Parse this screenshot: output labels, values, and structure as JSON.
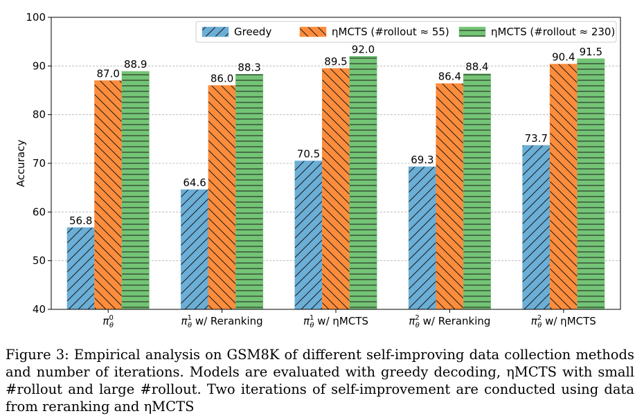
{
  "chart_data": {
    "type": "bar",
    "categories": [
      "π_θ^0",
      "π_θ^1 w/ Reranking",
      "π_θ^1 w/ ηMCTS",
      "π_θ^2 w/ Reranking",
      "π_θ^2 w/ ηMCTS"
    ],
    "category_labels": [
      {
        "base": "π",
        "sub": "θ",
        "sup": "0",
        "suffix": ""
      },
      {
        "base": "π",
        "sub": "θ",
        "sup": "1",
        "suffix": " w/ Reranking"
      },
      {
        "base": "π",
        "sub": "θ",
        "sup": "1",
        "suffix": " w/ ηMCTS"
      },
      {
        "base": "π",
        "sub": "θ",
        "sup": "2",
        "suffix": " w/ Reranking"
      },
      {
        "base": "π",
        "sub": "θ",
        "sup": "2",
        "suffix": " w/ ηMCTS"
      }
    ],
    "series": [
      {
        "name": "Greedy",
        "values": [
          56.8,
          64.6,
          70.5,
          69.3,
          73.7
        ],
        "color": "#6baed6",
        "hatch": "diagonal-up"
      },
      {
        "name": "ηMCTS (#rollout ≈ 55)",
        "values": [
          87.0,
          86.0,
          89.5,
          86.4,
          90.4
        ],
        "color": "#fd8d3c",
        "hatch": "diagonal-down"
      },
      {
        "name": "ηMCTS (#rollout ≈ 230)",
        "values": [
          88.9,
          88.3,
          92.0,
          88.4,
          91.5
        ],
        "color": "#74c476",
        "hatch": "horizontal"
      }
    ],
    "value_labels": [
      [
        "56.8",
        "64.6",
        "70.5",
        "69.3",
        "73.7"
      ],
      [
        "87.0",
        "86.0",
        "89.5",
        "86.4",
        "90.4"
      ],
      [
        "88.9",
        "88.3",
        "92.0",
        "88.4",
        "91.5"
      ]
    ],
    "ylabel": "Accuracy",
    "ylim": [
      40,
      100
    ],
    "yticks": [
      "40",
      "50",
      "60",
      "70",
      "80",
      "90",
      "100"
    ],
    "grid": "y-dashed",
    "legend_position": "top-right"
  },
  "caption": {
    "label": "Figure 3:",
    "text": "Empirical analysis on GSM8K of different self-improving data collection methods and number of iterations. Models are evaluated with greedy decoding, ηMCTS with small #rollout and large #rollout. Two iterations of self-improvement are conducted using data from reranking and ηMCTS"
  }
}
